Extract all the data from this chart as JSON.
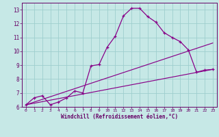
{
  "xlabel": "Windchill (Refroidissement éolien,°C)",
  "bg_color": "#c6e8e6",
  "grid_color": "#9ecece",
  "line_color": "#880088",
  "xlim": [
    -0.5,
    23.5
  ],
  "ylim": [
    6,
    13.5
  ],
  "xticks": [
    0,
    1,
    2,
    3,
    4,
    5,
    6,
    7,
    8,
    9,
    10,
    11,
    12,
    13,
    14,
    15,
    16,
    17,
    18,
    19,
    20,
    21,
    22,
    23
  ],
  "yticks": [
    6,
    7,
    8,
    9,
    10,
    11,
    12,
    13
  ],
  "series1_x": [
    0,
    23
  ],
  "series1_y": [
    6.15,
    8.7
  ],
  "series2_x": [
    0,
    23
  ],
  "series2_y": [
    6.15,
    10.6
  ],
  "series3_x": [
    0,
    1,
    2,
    3,
    4,
    5,
    6,
    7,
    8,
    9,
    10,
    11,
    12,
    13,
    14,
    15,
    16,
    17,
    18,
    19,
    20,
    21,
    22,
    23
  ],
  "series3_y": [
    6.15,
    6.65,
    6.8,
    6.15,
    6.35,
    6.65,
    7.15,
    7.0,
    8.95,
    9.05,
    10.3,
    11.1,
    12.55,
    13.1,
    13.1,
    12.5,
    12.1,
    11.35,
    11.0,
    10.7,
    10.1,
    8.5,
    8.65,
    8.7
  ]
}
